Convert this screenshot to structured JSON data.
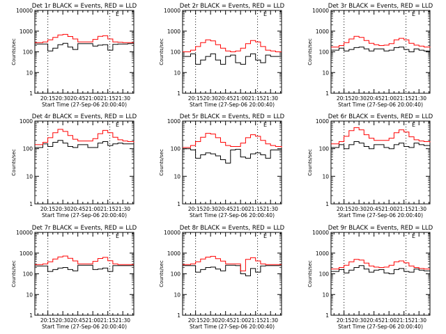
{
  "figure": {
    "foreground_color": "#000000",
    "background_color": "#ffffff",
    "event_color": "#000000",
    "lld_color": "#ff0000"
  },
  "chart_data": [
    {
      "type": "line",
      "title": "Det 1r BLACK = Events, RED = LLD",
      "xlabel": "Start Time (27-Sep-06 20:00:40)",
      "ylabel": "Counts/sec",
      "xscale": "time",
      "yscale": "log",
      "xlim": [
        "20:02",
        "21:41"
      ],
      "ylim": [
        1,
        10000
      ],
      "x_ticks": [
        "20:15",
        "20:30",
        "20:45",
        "21:00",
        "21:15",
        "21:30"
      ],
      "y_ticks": [
        "1",
        "10",
        "100",
        "1000",
        "10000"
      ],
      "dotted_vlines": [
        "20:15",
        "21:17"
      ],
      "annotation": "E",
      "x": [
        "20:02",
        "20:10",
        "20:15",
        "20:20",
        "20:25",
        "20:30",
        "20:35",
        "20:40",
        "20:45",
        "20:50",
        "20:55",
        "21:00",
        "21:05",
        "21:10",
        "21:15",
        "21:20",
        "21:25",
        "21:30",
        "21:35",
        "21:41"
      ],
      "series": [
        {
          "name": "BLACK = Events",
          "color": "#000000",
          "values": [
            240,
            240,
            110,
            150,
            220,
            260,
            170,
            130,
            250,
            250,
            250,
            190,
            210,
            220,
            120,
            230,
            240,
            240,
            250,
            250
          ]
        },
        {
          "name": "RED = LLD",
          "color": "#ff0000",
          "values": [
            280,
            300,
            380,
            500,
            650,
            700,
            550,
            420,
            300,
            300,
            300,
            400,
            560,
            600,
            420,
            300,
            290,
            280,
            280,
            280
          ]
        }
      ]
    },
    {
      "type": "line",
      "title": "Det 2r BLACK = Events, RED = LLD",
      "xlabel": "Start Time (27-Sep-06 20:00:40)",
      "ylabel": "Counts/sec",
      "xscale": "time",
      "yscale": "log",
      "xlim": [
        "20:02",
        "21:41"
      ],
      "ylim": [
        1,
        10000
      ],
      "x_ticks": [
        "20:15",
        "20:30",
        "20:45",
        "21:00",
        "21:15",
        "21:30"
      ],
      "y_ticks": [
        "1",
        "10",
        "100",
        "1000",
        "10000"
      ],
      "dotted_vlines": [
        "20:15",
        "21:17"
      ],
      "annotation": "E",
      "x": [
        "20:02",
        "20:10",
        "20:15",
        "20:20",
        "20:25",
        "20:30",
        "20:35",
        "20:40",
        "20:45",
        "20:50",
        "20:55",
        "21:00",
        "21:05",
        "21:10",
        "21:15",
        "21:20",
        "21:25",
        "21:30",
        "21:35",
        "21:41"
      ],
      "series": [
        {
          "name": "BLACK = Events",
          "color": "#000000",
          "values": [
            60,
            80,
            25,
            40,
            60,
            80,
            40,
            25,
            60,
            70,
            30,
            25,
            60,
            80,
            40,
            30,
            70,
            60,
            60,
            55
          ]
        },
        {
          "name": "RED = LLD",
          "color": "#ff0000",
          "values": [
            100,
            120,
            180,
            280,
            380,
            340,
            220,
            150,
            110,
            100,
            110,
            150,
            250,
            350,
            300,
            180,
            120,
            110,
            100,
            100
          ]
        }
      ]
    },
    {
      "type": "line",
      "title": "Det 3r BLACK = Events, RED = LLD",
      "xlabel": "Start Time (27-Sep-06 20:00:40)",
      "ylabel": "Counts/sec",
      "xscale": "time",
      "yscale": "log",
      "xlim": [
        "20:02",
        "21:41"
      ],
      "ylim": [
        1,
        10000
      ],
      "x_ticks": [
        "20:15",
        "20:30",
        "20:45",
        "21:00",
        "21:15",
        "21:30"
      ],
      "y_ticks": [
        "1",
        "10",
        "100",
        "1000",
        "10000"
      ],
      "dotted_vlines": [
        "20:15",
        "21:17"
      ],
      "annotation": "E",
      "x": [
        "20:02",
        "20:10",
        "20:15",
        "20:20",
        "20:25",
        "20:30",
        "20:35",
        "20:40",
        "20:45",
        "20:50",
        "20:55",
        "21:00",
        "21:05",
        "21:10",
        "21:15",
        "21:20",
        "21:25",
        "21:30",
        "21:35",
        "21:41"
      ],
      "series": [
        {
          "name": "BLACK = Events",
          "color": "#000000",
          "values": [
            120,
            150,
            110,
            130,
            160,
            170,
            140,
            110,
            140,
            140,
            110,
            120,
            160,
            170,
            130,
            100,
            140,
            120,
            110,
            100
          ]
        },
        {
          "name": "RED = LLD",
          "color": "#ff0000",
          "values": [
            170,
            200,
            280,
            420,
            560,
            500,
            350,
            260,
            220,
            200,
            210,
            250,
            380,
            450,
            380,
            260,
            210,
            190,
            170,
            160
          ]
        }
      ]
    },
    {
      "type": "line",
      "title": "Det 4r BLACK = Events, RED = LLD",
      "xlabel": "Start Time (27-Sep-06 20:00:40)",
      "ylabel": "Counts/sec",
      "xscale": "time",
      "yscale": "log",
      "xlim": [
        "20:02",
        "21:41"
      ],
      "ylim": [
        1,
        1000
      ],
      "x_ticks": [
        "20:15",
        "20:30",
        "20:45",
        "21:00",
        "21:15",
        "21:30"
      ],
      "y_ticks": [
        "1",
        "10",
        "100",
        "1000"
      ],
      "dotted_vlines": [
        "20:15",
        "21:17"
      ],
      "annotation": "E",
      "x": [
        "20:02",
        "20:10",
        "20:15",
        "20:20",
        "20:25",
        "20:30",
        "20:35",
        "20:40",
        "20:45",
        "20:50",
        "20:55",
        "21:00",
        "21:05",
        "21:10",
        "21:15",
        "21:20",
        "21:25",
        "21:30",
        "21:35",
        "21:41"
      ],
      "series": [
        {
          "name": "BLACK = Events",
          "color": "#000000",
          "values": [
            110,
            150,
            120,
            170,
            200,
            160,
            120,
            110,
            140,
            140,
            110,
            110,
            160,
            180,
            130,
            150,
            160,
            150,
            150,
            150
          ]
        },
        {
          "name": "RED = LLD",
          "color": "#ff0000",
          "values": [
            140,
            170,
            250,
            380,
            500,
            420,
            300,
            220,
            190,
            190,
            190,
            230,
            350,
            460,
            380,
            260,
            210,
            190,
            180,
            170
          ]
        }
      ]
    },
    {
      "type": "line",
      "title": "Det 5r BLACK = Events, RED = LLD",
      "xlabel": "Start Time (27-Sep-06 20:00:40)",
      "ylabel": "Counts/sec",
      "xscale": "time",
      "yscale": "log",
      "xlim": [
        "20:02",
        "21:41"
      ],
      "ylim": [
        1,
        1000
      ],
      "x_ticks": [
        "20:15",
        "20:30",
        "20:45",
        "21:00",
        "21:15",
        "21:30"
      ],
      "y_ticks": [
        "1",
        "10",
        "100",
        "1000"
      ],
      "dotted_vlines": [
        "20:15",
        "21:17"
      ],
      "annotation": "E",
      "x": [
        "20:02",
        "20:10",
        "20:15",
        "20:20",
        "20:25",
        "20:30",
        "20:35",
        "20:40",
        "20:45",
        "20:50",
        "20:55",
        "21:00",
        "21:05",
        "21:10",
        "21:15",
        "21:20",
        "21:25",
        "21:30",
        "21:35",
        "21:41"
      ],
      "series": [
        {
          "name": "BLACK = Events",
          "color": "#000000",
          "values": [
            100,
            90,
            45,
            60,
            70,
            65,
            55,
            40,
            30,
            90,
            95,
            50,
            45,
            65,
            70,
            60,
            45,
            90,
            90,
            85
          ]
        },
        {
          "name": "RED = LLD",
          "color": "#ff0000",
          "values": [
            110,
            130,
            180,
            260,
            360,
            340,
            250,
            170,
            130,
            120,
            120,
            160,
            250,
            320,
            280,
            200,
            150,
            130,
            120,
            110
          ]
        }
      ]
    },
    {
      "type": "line",
      "title": "Det 6r BLACK = Events, RED = LLD",
      "xlabel": "Start Time (27-Sep-06 20:00:40)",
      "ylabel": "Counts/sec",
      "xscale": "time",
      "yscale": "log",
      "xlim": [
        "20:02",
        "21:41"
      ],
      "ylim": [
        1,
        1000
      ],
      "x_ticks": [
        "20:15",
        "20:30",
        "20:45",
        "21:00",
        "21:15",
        "21:30"
      ],
      "y_ticks": [
        "1",
        "10",
        "100",
        "1000"
      ],
      "dotted_vlines": [
        "20:15",
        "21:17"
      ],
      "annotation": "E",
      "x": [
        "20:02",
        "20:10",
        "20:15",
        "20:20",
        "20:25",
        "20:30",
        "20:35",
        "20:40",
        "20:45",
        "20:50",
        "20:55",
        "21:00",
        "21:05",
        "21:10",
        "21:15",
        "21:20",
        "21:25",
        "21:30",
        "21:35",
        "21:41"
      ],
      "series": [
        {
          "name": "BLACK = Events",
          "color": "#000000",
          "values": [
            110,
            140,
            100,
            140,
            180,
            160,
            120,
            100,
            140,
            140,
            110,
            100,
            140,
            160,
            120,
            110,
            160,
            140,
            130,
            130
          ]
        },
        {
          "name": "RED = LLD",
          "color": "#ff0000",
          "values": [
            150,
            180,
            280,
            450,
            580,
            480,
            320,
            240,
            200,
            200,
            200,
            240,
            380,
            480,
            400,
            270,
            210,
            190,
            180,
            170
          ]
        }
      ]
    },
    {
      "type": "line",
      "title": "Det 7r BLACK = Events, RED = LLD",
      "xlabel": "Start Time (27-Sep-06 20:00:40)",
      "ylabel": "Counts/sec",
      "xscale": "time",
      "yscale": "log",
      "xlim": [
        "20:02",
        "21:41"
      ],
      "ylim": [
        1,
        10000
      ],
      "x_ticks": [
        "20:15",
        "20:30",
        "20:45",
        "21:00",
        "21:15",
        "21:30"
      ],
      "y_ticks": [
        "1",
        "10",
        "100",
        "1000",
        "10000"
      ],
      "dotted_vlines": [
        "20:15",
        "21:17"
      ],
      "annotation": "E",
      "x": [
        "20:02",
        "20:10",
        "20:15",
        "20:20",
        "20:25",
        "20:30",
        "20:35",
        "20:40",
        "20:45",
        "20:50",
        "20:55",
        "21:00",
        "21:05",
        "21:10",
        "21:15",
        "21:20",
        "21:25",
        "21:30",
        "21:35",
        "21:41"
      ],
      "series": [
        {
          "name": "BLACK = Events",
          "color": "#000000",
          "values": [
            240,
            240,
            130,
            160,
            190,
            200,
            160,
            140,
            260,
            260,
            260,
            160,
            170,
            190,
            130,
            250,
            250,
            250,
            250,
            250
          ]
        },
        {
          "name": "RED = LLD",
          "color": "#ff0000",
          "values": [
            280,
            300,
            380,
            520,
            650,
            720,
            560,
            420,
            300,
            300,
            300,
            400,
            550,
            620,
            430,
            300,
            280,
            280,
            280,
            280
          ]
        }
      ]
    },
    {
      "type": "line",
      "title": "Det 8r BLACK = Events, RED = LLD",
      "xlabel": "Start Time (27-Sep-06 20:00:40)",
      "ylabel": "Counts/sec",
      "xscale": "time",
      "yscale": "log",
      "xlim": [
        "20:02",
        "21:41"
      ],
      "ylim": [
        1,
        10000
      ],
      "x_ticks": [
        "20:15",
        "20:30",
        "20:45",
        "21:00",
        "21:15",
        "21:30"
      ],
      "y_ticks": [
        "1",
        "10",
        "100",
        "1000",
        "10000"
      ],
      "dotted_vlines": [
        "20:15",
        "21:17"
      ],
      "annotation": "E",
      "x": [
        "20:02",
        "20:10",
        "20:15",
        "20:20",
        "20:25",
        "20:30",
        "20:35",
        "20:40",
        "20:45",
        "20:50",
        "20:55",
        "21:00",
        "21:05",
        "21:10",
        "21:15",
        "21:20",
        "21:25",
        "21:30",
        "21:35",
        "21:41"
      ],
      "series": [
        {
          "name": "BLACK = Events",
          "color": "#000000",
          "values": [
            250,
            250,
            120,
            160,
            200,
            210,
            170,
            140,
            260,
            260,
            250,
            100,
            80,
            180,
            120,
            240,
            250,
            250,
            250,
            250
          ]
        },
        {
          "name": "RED = LLD",
          "color": "#ff0000",
          "values": [
            280,
            300,
            380,
            520,
            640,
            700,
            540,
            410,
            300,
            300,
            300,
            140,
            500,
            600,
            420,
            300,
            280,
            280,
            280,
            280
          ]
        }
      ]
    },
    {
      "type": "line",
      "title": "Det 9r BLACK = Events, RED = LLD",
      "xlabel": "Start Time (27-Sep-06 20:00:40)",
      "ylabel": "Counts/sec",
      "xscale": "time",
      "yscale": "log",
      "xlim": [
        "20:02",
        "21:41"
      ],
      "ylim": [
        1,
        10000
      ],
      "x_ticks": [
        "20:15",
        "20:30",
        "20:45",
        "21:00",
        "21:15",
        "21:30"
      ],
      "y_ticks": [
        "1",
        "10",
        "100",
        "1000",
        "10000"
      ],
      "dotted_vlines": [
        "20:15",
        "21:17"
      ],
      "annotation": "E",
      "x": [
        "20:02",
        "20:10",
        "20:15",
        "20:20",
        "20:25",
        "20:30",
        "20:35",
        "20:40",
        "20:45",
        "20:50",
        "20:55",
        "21:00",
        "21:05",
        "21:10",
        "21:15",
        "21:20",
        "21:25",
        "21:30",
        "21:35",
        "21:41"
      ],
      "series": [
        {
          "name": "BLACK = Events",
          "color": "#000000",
          "values": [
            130,
            160,
            110,
            150,
            200,
            250,
            170,
            120,
            150,
            160,
            110,
            100,
            160,
            180,
            130,
            120,
            170,
            150,
            140,
            140
          ]
        },
        {
          "name": "RED = LLD",
          "color": "#ff0000",
          "values": [
            170,
            200,
            260,
            380,
            500,
            460,
            330,
            240,
            210,
            200,
            210,
            260,
            380,
            420,
            340,
            240,
            200,
            180,
            170,
            170
          ]
        }
      ]
    }
  ]
}
